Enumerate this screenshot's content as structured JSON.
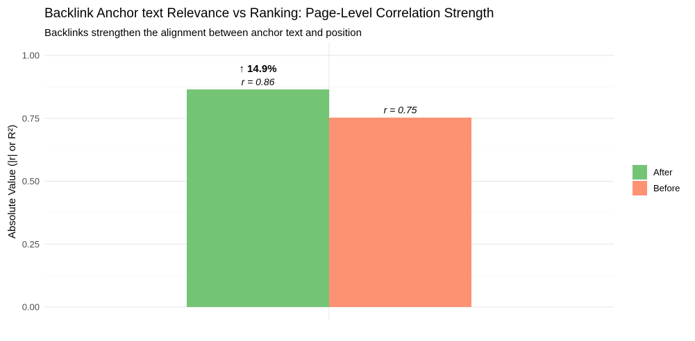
{
  "chart_data": {
    "type": "bar",
    "title": "Backlink Anchor text Relevance vs Ranking: Page-Level Correlation Strength",
    "subtitle": "Backlinks strengthen the alignment between anchor text and position",
    "xlabel": "",
    "ylabel": "Absolute Value (|r| or R²)",
    "ylim": [
      0,
      1.0
    ],
    "yticks": [
      0.0,
      0.25,
      0.5,
      0.75,
      1.0
    ],
    "ytick_labels": [
      "0.00",
      "0.25",
      "0.50",
      "0.75",
      "1.00"
    ],
    "grid": true,
    "legend_position": "right",
    "series": [
      {
        "name": "After",
        "value": 0.865,
        "label": "r = 0.86",
        "color": "#74c476"
      },
      {
        "name": "Before",
        "value": 0.753,
        "label": "r = 0.75",
        "color": "#fc9272"
      }
    ],
    "annotation": {
      "text": "↑ 14.9%",
      "series": "After"
    }
  }
}
